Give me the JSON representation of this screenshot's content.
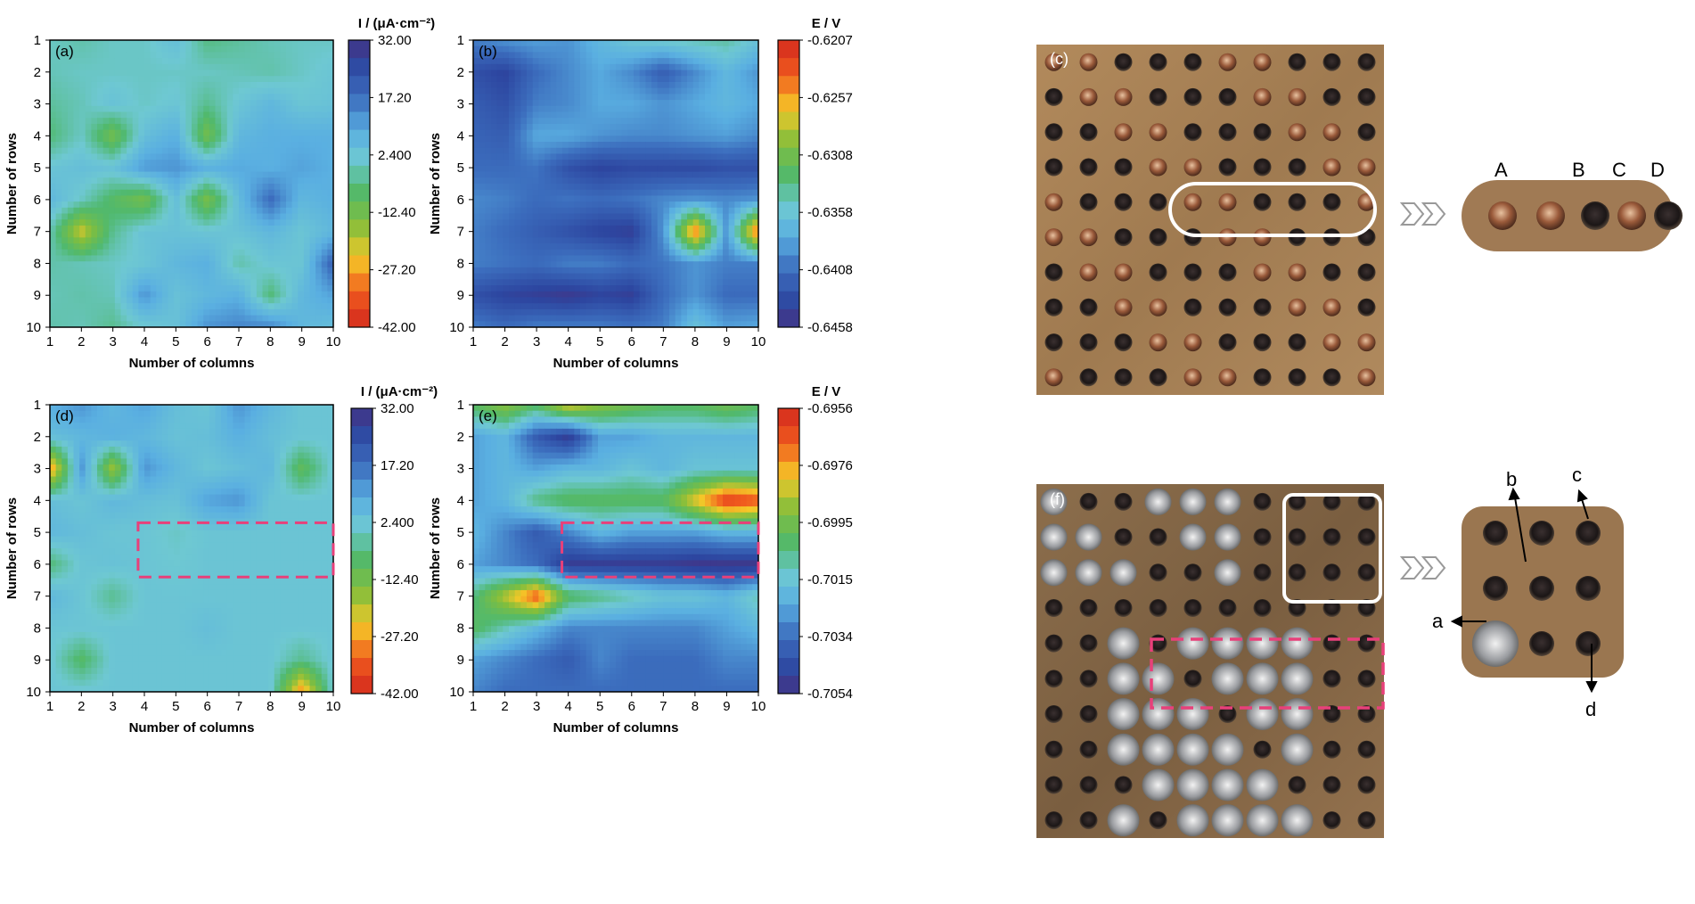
{
  "chart_data": [
    {
      "type": "heatmap",
      "panel_label": "(a)",
      "xlabel": "Number of columns",
      "ylabel": "Number of rows",
      "colorbar_label": "I / (μA·cm⁻²)",
      "colorbar_ticks": [
        "32.00",
        "17.20",
        "2.400",
        "-12.40",
        "-27.20",
        "-42.00"
      ],
      "colorbar_range": [
        -42.0,
        32.0
      ],
      "x": [
        1,
        2,
        3,
        4,
        5,
        6,
        7,
        8,
        9,
        10
      ],
      "y": [
        1,
        2,
        3,
        4,
        5,
        6,
        7,
        8,
        9,
        10
      ],
      "grid": [
        [
          0,
          -2,
          0,
          0,
          4,
          -5,
          -3,
          -1,
          0,
          0
        ],
        [
          -1,
          0,
          0,
          0,
          0,
          0,
          -1,
          -2,
          0,
          2
        ],
        [
          -3,
          -1,
          3,
          0,
          2,
          -4,
          2,
          6,
          2,
          3
        ],
        [
          -6,
          0,
          -13,
          4,
          8,
          -13,
          6,
          8,
          8,
          8
        ],
        [
          2,
          4,
          3,
          11,
          12,
          8,
          9,
          8,
          10,
          8
        ],
        [
          6,
          0,
          -8,
          -13,
          4,
          -14,
          5,
          18,
          6,
          8
        ],
        [
          -1,
          -22,
          -4,
          3,
          3,
          2,
          3,
          6,
          2,
          6
        ],
        [
          -2,
          -1,
          0,
          2,
          6,
          8,
          -2,
          2,
          2,
          20
        ],
        [
          -1,
          -2,
          -1,
          12,
          3,
          6,
          8,
          -6,
          6,
          10
        ],
        [
          -2,
          -1,
          -4,
          1,
          3,
          12,
          14,
          14,
          6,
          4
        ]
      ]
    },
    {
      "type": "heatmap",
      "panel_label": "(b)",
      "xlabel": "Number of columns",
      "ylabel": "Number of rows",
      "colorbar_label": "E / V",
      "colorbar_ticks": [
        "-0.6207",
        "-0.6257",
        "-0.6308",
        "-0.6358",
        "-0.6408",
        "-0.6458"
      ],
      "colorbar_range": [
        -0.6458,
        -0.6207
      ],
      "x": [
        1,
        2,
        3,
        4,
        5,
        6,
        7,
        8,
        9,
        10
      ],
      "y": [
        1,
        2,
        3,
        4,
        5,
        6,
        7,
        8,
        9,
        10
      ],
      "grid": [
        [
          -0.64,
          -0.639,
          -0.6385,
          -0.639,
          -0.637,
          -0.6355,
          -0.635,
          -0.6345,
          -0.634,
          -0.636
        ],
        [
          -0.643,
          -0.644,
          -0.641,
          -0.6395,
          -0.638,
          -0.6395,
          -0.642,
          -0.6395,
          -0.637,
          -0.639
        ],
        [
          -0.642,
          -0.643,
          -0.64,
          -0.6395,
          -0.638,
          -0.638,
          -0.639,
          -0.638,
          -0.637,
          -0.638
        ],
        [
          -0.6415,
          -0.642,
          -0.638,
          -0.638,
          -0.639,
          -0.6395,
          -0.6395,
          -0.639,
          -0.6385,
          -0.6395
        ],
        [
          -0.641,
          -0.641,
          -0.6405,
          -0.643,
          -0.644,
          -0.6435,
          -0.6435,
          -0.6435,
          -0.643,
          -0.643
        ],
        [
          -0.6395,
          -0.64,
          -0.641,
          -0.6405,
          -0.641,
          -0.6405,
          -0.6395,
          -0.639,
          -0.6395,
          -0.639
        ],
        [
          -0.64,
          -0.641,
          -0.642,
          -0.643,
          -0.644,
          -0.6445,
          -0.639,
          -0.624,
          -0.639,
          -0.623
        ],
        [
          -0.64,
          -0.6405,
          -0.641,
          -0.64,
          -0.64,
          -0.641,
          -0.6405,
          -0.639,
          -0.64,
          -0.64
        ],
        [
          -0.643,
          -0.644,
          -0.6445,
          -0.645,
          -0.644,
          -0.6445,
          -0.641,
          -0.639,
          -0.641,
          -0.641
        ],
        [
          -0.64,
          -0.641,
          -0.64,
          -0.64,
          -0.64,
          -0.6405,
          -0.64,
          -0.636,
          -0.6385,
          -0.638
        ]
      ]
    },
    {
      "type": "heatmap",
      "panel_label": "(d)",
      "xlabel": "Number of columns",
      "ylabel": "Number of rows",
      "colorbar_label": "I / (μA·cm⁻²)",
      "colorbar_ticks": [
        "32.00",
        "17.20",
        "2.400",
        "-12.40",
        "-27.20",
        "-42.00"
      ],
      "colorbar_range": [
        -42.0,
        32.0
      ],
      "x": [
        1,
        2,
        3,
        4,
        5,
        6,
        7,
        8,
        9,
        10
      ],
      "y": [
        1,
        2,
        3,
        4,
        5,
        6,
        7,
        8,
        9,
        10
      ],
      "grid": [
        [
          8,
          12,
          6,
          10,
          4,
          2,
          12,
          6,
          2,
          2
        ],
        [
          4,
          6,
          8,
          6,
          3,
          4,
          8,
          4,
          2,
          2
        ],
        [
          -30,
          12,
          -18,
          12,
          6,
          2,
          4,
          6,
          -10,
          2
        ],
        [
          4,
          2,
          6,
          4,
          3,
          10,
          12,
          2,
          2,
          2
        ],
        [
          6,
          4,
          2,
          2,
          0,
          2,
          2,
          2,
          2,
          2
        ],
        [
          -6,
          2,
          3,
          2,
          1,
          2,
          2,
          2,
          2,
          2
        ],
        [
          6,
          2,
          -4,
          2,
          2,
          2,
          2,
          2,
          2,
          2
        ],
        [
          2,
          2,
          2,
          2,
          2,
          4,
          2,
          2,
          2,
          2
        ],
        [
          2,
          -8,
          2,
          2,
          2,
          2,
          2,
          2,
          -4,
          2
        ],
        [
          2,
          2,
          2,
          2,
          2,
          2,
          2,
          2,
          -30,
          2
        ]
      ]
    },
    {
      "type": "heatmap",
      "panel_label": "(e)",
      "xlabel": "Number of columns",
      "ylabel": "Number of rows",
      "colorbar_label": "E / V",
      "colorbar_ticks": [
        "-0.6956",
        "-0.6976",
        "-0.6995",
        "-0.7015",
        "-0.7034",
        "-0.7054"
      ],
      "colorbar_range": [
        -0.7054,
        -0.6956
      ],
      "x": [
        1,
        2,
        3,
        4,
        5,
        6,
        7,
        8,
        9,
        10
      ],
      "y": [
        1,
        2,
        3,
        4,
        5,
        6,
        7,
        8,
        9,
        10
      ],
      "grid": [
        [
          -0.7,
          -0.699,
          -0.7,
          -0.698,
          -0.699,
          -0.6995,
          -0.7,
          -0.7,
          -0.6995,
          -0.7
        ],
        [
          -0.7025,
          -0.702,
          -0.704,
          -0.705,
          -0.7025,
          -0.7025,
          -0.702,
          -0.702,
          -0.702,
          -0.702
        ],
        [
          -0.7025,
          -0.702,
          -0.7025,
          -0.702,
          -0.702,
          -0.7015,
          -0.702,
          -0.7015,
          -0.7015,
          -0.7015
        ],
        [
          -0.7025,
          -0.702,
          -0.7005,
          -0.7,
          -0.7,
          -0.7,
          -0.7,
          -0.698,
          -0.696,
          -0.6965
        ],
        [
          -0.702,
          -0.703,
          -0.704,
          -0.703,
          -0.702,
          -0.7025,
          -0.7025,
          -0.7025,
          -0.702,
          -0.702
        ],
        [
          -0.7025,
          -0.703,
          -0.7035,
          -0.705,
          -0.705,
          -0.705,
          -0.705,
          -0.7052,
          -0.7052,
          -0.7052
        ],
        [
          -0.7005,
          -0.6985,
          -0.6965,
          -0.7,
          -0.7005,
          -0.701,
          -0.7015,
          -0.7015,
          -0.702,
          -0.701
        ],
        [
          -0.7,
          -0.701,
          -0.702,
          -0.703,
          -0.703,
          -0.703,
          -0.703,
          -0.703,
          -0.7025,
          -0.702
        ],
        [
          -0.7025,
          -0.703,
          -0.7035,
          -0.704,
          -0.703,
          -0.7035,
          -0.7035,
          -0.7035,
          -0.703,
          -0.703
        ],
        [
          -0.703,
          -0.7035,
          -0.7035,
          -0.7035,
          -0.7035,
          -0.7035,
          -0.7035,
          -0.7035,
          -0.7035,
          -0.7035
        ]
      ]
    }
  ],
  "photos": {
    "c": {
      "panel_label": "(c)",
      "zoom_labels": [
        "A",
        "B",
        "C",
        "D"
      ]
    },
    "f": {
      "panel_label": "(f)",
      "zoom_labels": [
        "a",
        "b",
        "c",
        "d"
      ]
    }
  },
  "colors": {
    "dashed_box": "#e8407a",
    "contour_line": "#555555",
    "photo_c_bg": "#a77f52",
    "photo_f_bg": "#8a6a48"
  }
}
